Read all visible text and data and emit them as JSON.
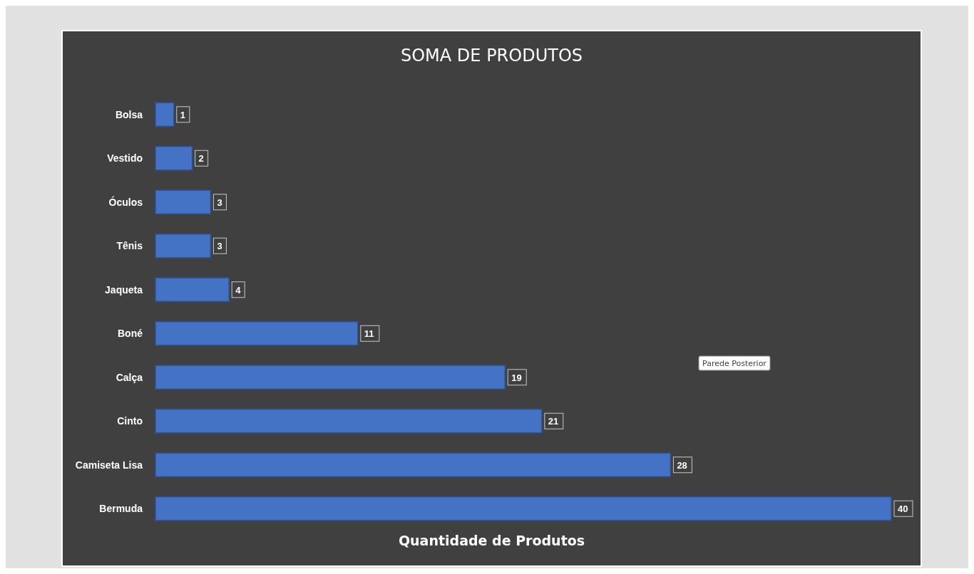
{
  "chart_data": {
    "type": "bar",
    "orientation": "horizontal",
    "title": "SOMA DE PRODUTOS",
    "xlabel": "Quantidade de Produtos",
    "categories": [
      "Bolsa",
      "Vestido",
      "Óculos",
      "Tênis",
      "Jaqueta",
      "Boné",
      "Calça",
      "Cinto",
      "Camiseta Lisa",
      "Bermuda"
    ],
    "values": [
      1,
      2,
      3,
      3,
      4,
      11,
      19,
      21,
      28,
      40
    ],
    "color": "#4472c4",
    "data_labels": true,
    "annotations": [
      "Parede Posterior"
    ]
  }
}
